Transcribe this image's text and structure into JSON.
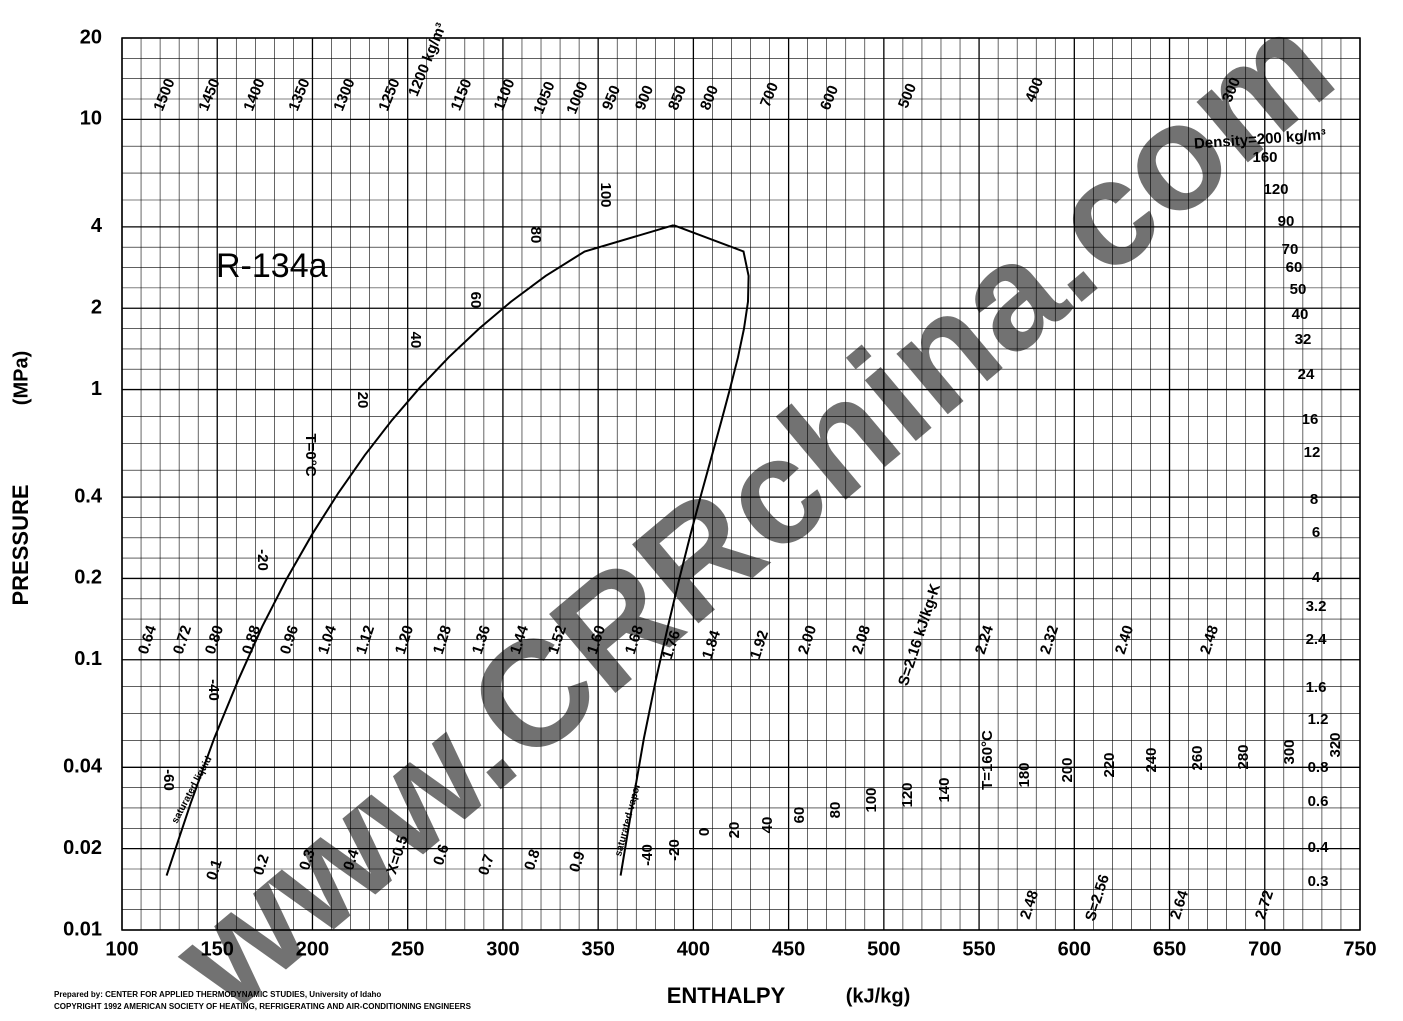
{
  "chart_data": {
    "type": "line",
    "title": "R-134a",
    "x_label": "ENTHALPY",
    "x_unit": "(kJ/kg)",
    "y_label": "PRESSURE",
    "y_unit": "(MPa)",
    "xlim": [
      100,
      750
    ],
    "xticks": [
      100,
      150,
      200,
      250,
      300,
      350,
      400,
      450,
      500,
      550,
      600,
      650,
      700,
      750
    ],
    "ylim": [
      0.01,
      20
    ],
    "yticks": [
      {
        "value": 0.01,
        "label": "0.01"
      },
      {
        "value": 0.02,
        "label": "0.02"
      },
      {
        "value": 0.04,
        "label": "0.04"
      },
      0.1,
      0.2,
      0.4,
      1,
      2,
      4,
      10,
      20
    ],
    "log_y": true,
    "grid": true,
    "series": [
      {
        "name": "saturated liquid",
        "color": "#000000",
        "x": [
          123.4,
          136.0,
          148.4,
          161.1,
          173.6,
          186.7,
          200.0,
          213.6,
          227.5,
          241.7,
          256.4,
          271.6,
          287.5,
          304.3,
          322.4,
          342.9,
          389.6
        ],
        "values": [
          0.0159,
          0.0294,
          0.0512,
          0.0844,
          0.1327,
          0.2006,
          0.2928,
          0.4146,
          0.5717,
          0.7702,
          1.0166,
          1.3179,
          1.6818,
          2.1168,
          2.6332,
          3.2442,
          4.059
        ]
      },
      {
        "name": "saturated vapor",
        "color": "#000000",
        "x": [
          361.8,
          368.1,
          374.0,
          380.3,
          386.6,
          392.7,
          398.6,
          404.3,
          409.8,
          414.8,
          419.4,
          423.4,
          426.6,
          428.7,
          429.0,
          426.3,
          389.6
        ],
        "values": [
          0.0159,
          0.0294,
          0.0512,
          0.0844,
          0.1327,
          0.2006,
          0.2928,
          0.4146,
          0.5717,
          0.7702,
          1.0166,
          1.3179,
          1.6818,
          2.1168,
          2.6332,
          3.2442,
          4.059
        ]
      }
    ],
    "isotherm_labels_liquid": [
      "-60",
      "-40",
      "-20",
      "T=0°C",
      "20",
      "40",
      "60",
      "80",
      "100"
    ],
    "isotherm_labels_vapor": [
      "-40",
      "-20",
      "0",
      "20",
      "40",
      "60",
      "80",
      "100",
      "120",
      "140",
      "T=160°C",
      "180",
      "200",
      "220",
      "240",
      "260",
      "280",
      "300",
      "320"
    ],
    "density_labels_top": [
      "1500",
      "1450",
      "1400",
      "1350",
      "1300",
      "1250",
      "1200 kg/m³",
      "1150",
      "1100",
      "1050",
      "1000",
      "950",
      "900",
      "850",
      "800",
      "700",
      "600",
      "500",
      "400",
      "300"
    ],
    "density_labels_right": [
      "Density=200 kg/m³",
      "160",
      "120",
      "90",
      "70",
      "60",
      "50",
      "40",
      "32",
      "24",
      "16",
      "12",
      "8",
      "6",
      "4",
      "3.2",
      "2.4",
      "1.6",
      "1.2",
      "0.8",
      "0.6",
      "0.4",
      "0.3"
    ],
    "entropy_labels": [
      "0.64",
      "0.72",
      "0.80",
      "0.88",
      "0.96",
      "1.04",
      "1.12",
      "1.20",
      "1.28",
      "1.36",
      "1.44",
      "1.52",
      "1.60",
      "1.68",
      "1.76",
      "1.84",
      "1.92",
      "2.00",
      "2.08",
      "S=2.16 kJ/kg-K",
      "2.24",
      "2.32",
      "2.40",
      "2.48",
      "2.48",
      "S=2.56",
      "2.64",
      "2.72"
    ],
    "quality_labels": [
      "0.1",
      "0.2",
      "0.3",
      "0.4",
      "X=0.5",
      "0.6",
      "0.7",
      "0.8",
      "0.9"
    ],
    "credit": "Prepared by:  CENTER FOR APPLIED THERMODYNAMIC STUDIES, University of Idaho",
    "copyright": "COPYRIGHT 1992 AMERICAN SOCIETY OF HEATING, REFRIGERATING AND AIR-CONDITIONING ENGINEERS",
    "watermark": "www.CRRchina.com"
  }
}
